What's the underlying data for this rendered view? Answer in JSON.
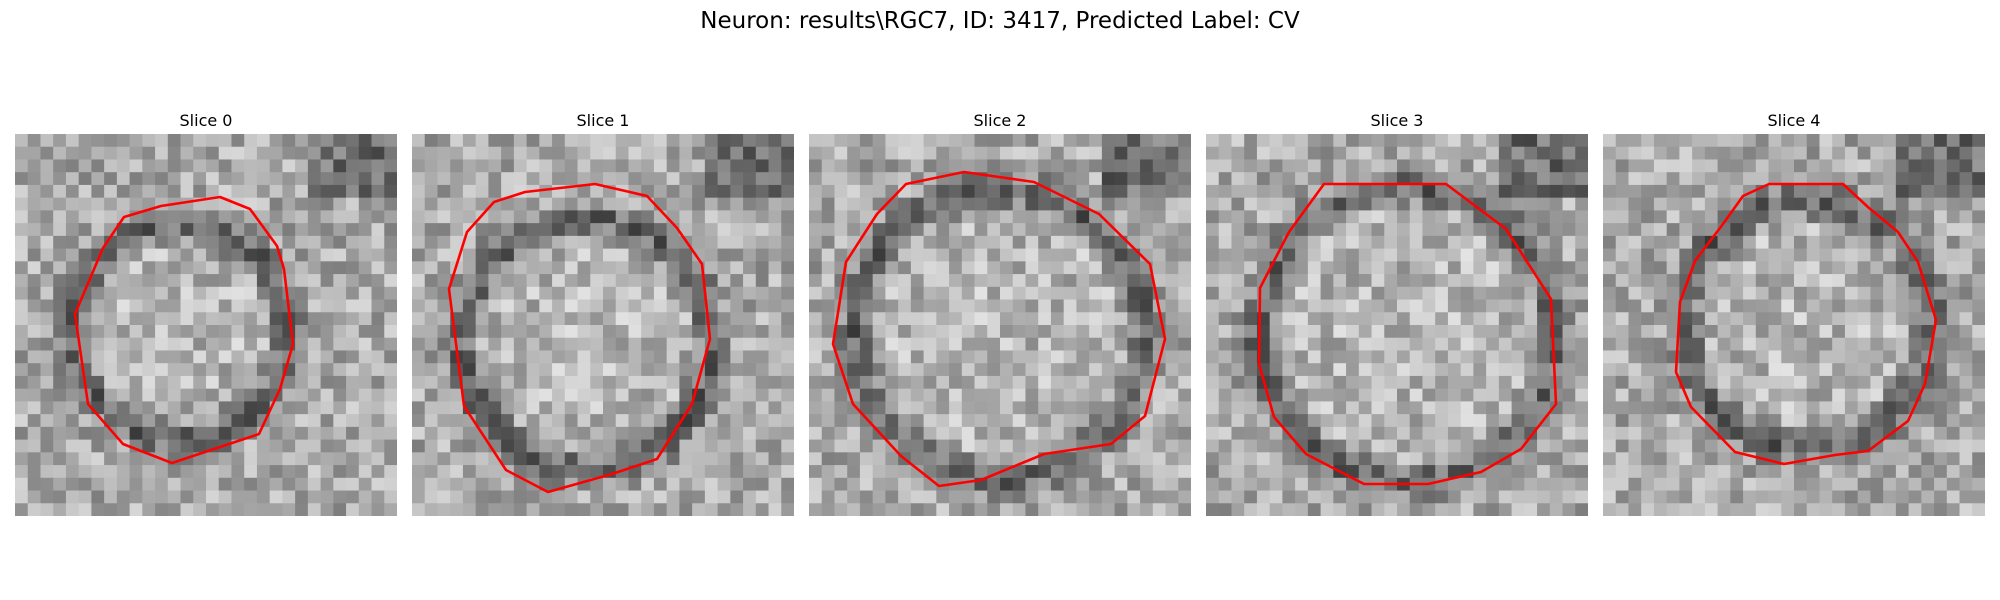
{
  "figure": {
    "title": "Neuron: results\\RGC7, ID: 3417, Predicted Label: CV"
  },
  "panels": [
    {
      "title": "Slice 0"
    },
    {
      "title": "Slice 1"
    },
    {
      "title": "Slice 2"
    },
    {
      "title": "Slice 3"
    },
    {
      "title": "Slice 4"
    }
  ],
  "colors": {
    "contour": "#ff0000",
    "background": "#ffffff"
  }
}
